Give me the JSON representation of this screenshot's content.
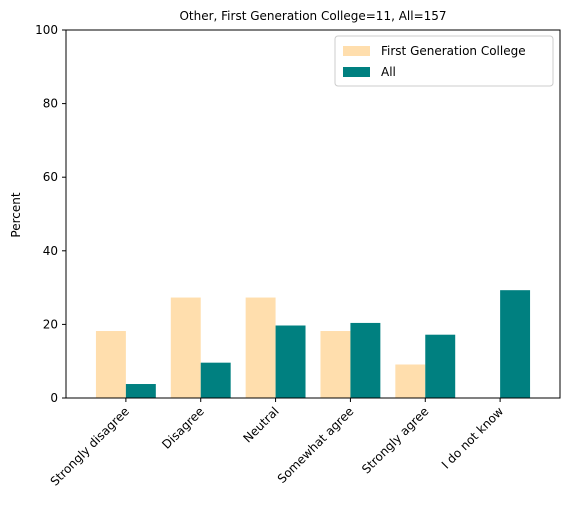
{
  "chart_data": {
    "type": "bar",
    "title": "Other, First Generation College=11, All=157",
    "xlabel": "",
    "ylabel": "Percent",
    "ylim": [
      0,
      100
    ],
    "yticks": [
      0,
      20,
      40,
      60,
      80,
      100
    ],
    "categories": [
      "Strongly disagree",
      "Disagree",
      "Neutral",
      "Somewhat agree",
      "Strongly agree",
      "I do not know"
    ],
    "series": [
      {
        "name": "First Generation College",
        "color": "#FFDEAD",
        "values": [
          18.2,
          27.3,
          27.3,
          18.2,
          9.1,
          0
        ]
      },
      {
        "name": "All",
        "color": "#008080",
        "values": [
          3.8,
          9.6,
          19.7,
          20.4,
          17.2,
          29.3
        ]
      }
    ],
    "legend_position": "top-right",
    "grid": false
  }
}
